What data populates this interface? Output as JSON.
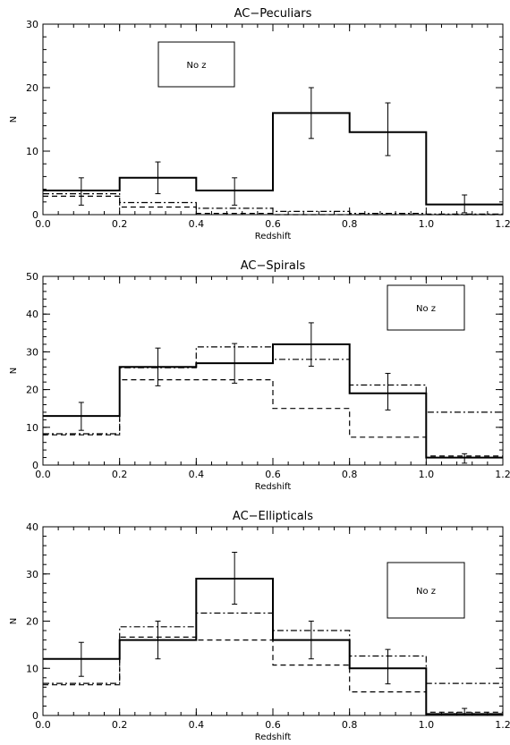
{
  "chart_data": [
    {
      "type": "line",
      "title": "AC−Peculiars",
      "xlabel": "Redshift",
      "ylabel": "N",
      "xlim": [
        0,
        1.2
      ],
      "ylim": [
        0,
        30
      ],
      "xticks": [
        "0.0",
        "0.2",
        "0.4",
        "0.6",
        "0.8",
        "1.0",
        "1.2"
      ],
      "yticks": [
        "0",
        "10",
        "20",
        "30"
      ],
      "box_label": "No z",
      "bin_edges": [
        0,
        0.2,
        0.4,
        0.6,
        0.8,
        1.0,
        1.2
      ],
      "series": [
        {
          "style": "solid",
          "values": [
            3.8,
            5.8,
            3.8,
            16,
            13,
            1.6
          ],
          "errors": [
            [
              1.5,
              5.8
            ],
            [
              3.3,
              8.3
            ],
            [
              1.5,
              5.8
            ],
            [
              12,
              20
            ],
            [
              9.3,
              17.6
            ],
            [
              0.3,
              3.1
            ]
          ]
        },
        {
          "style": "dashed",
          "values": [
            2.9,
            1.2,
            0.2,
            0.0,
            0.0,
            0.0
          ]
        },
        {
          "style": "dashdot",
          "values": [
            3.3,
            1.9,
            1.0,
            0.5,
            0.2,
            0.1
          ]
        }
      ]
    },
    {
      "type": "line",
      "title": "AC−Spirals",
      "xlabel": "Redshift",
      "ylabel": "N",
      "xlim": [
        0,
        1.2
      ],
      "ylim": [
        0,
        50
      ],
      "xticks": [
        "0.0",
        "0.2",
        "0.4",
        "0.6",
        "0.8",
        "1.0",
        "1.2"
      ],
      "yticks": [
        "0",
        "10",
        "20",
        "30",
        "40",
        "50"
      ],
      "box_label": "No z",
      "bin_edges": [
        0,
        0.2,
        0.4,
        0.6,
        0.8,
        1.0,
        1.2
      ],
      "series": [
        {
          "style": "solid",
          "values": [
            13,
            26,
            27,
            32,
            19,
            2
          ],
          "errors": [
            [
              9.2,
              16.6
            ],
            [
              21,
              31
            ],
            [
              21.7,
              32.2
            ],
            [
              26.2,
              37.7
            ],
            [
              14.6,
              24.3
            ],
            [
              0.5,
              3
            ]
          ]
        },
        {
          "style": "dashed",
          "values": [
            8,
            22.6,
            22.6,
            15,
            7.4,
            2.4
          ]
        },
        {
          "style": "dashdot",
          "values": [
            8.3,
            25.8,
            31.3,
            28,
            21.2,
            14
          ]
        }
      ]
    },
    {
      "type": "line",
      "title": "AC−Ellipticals",
      "xlabel": "Redshift",
      "ylabel": "N",
      "xlim": [
        0,
        1.2
      ],
      "ylim": [
        0,
        40
      ],
      "xticks": [
        "0.0",
        "0.2",
        "0.4",
        "0.6",
        "0.8",
        "1.0",
        "1.2"
      ],
      "yticks": [
        "0",
        "10",
        "20",
        "30",
        "40"
      ],
      "box_label": "No z",
      "bin_edges": [
        0,
        0.2,
        0.4,
        0.6,
        0.8,
        1.0,
        1.2
      ],
      "series": [
        {
          "style": "solid",
          "values": [
            12,
            16,
            29,
            16,
            10,
            0.3
          ],
          "errors": [
            [
              8.3,
              15.5
            ],
            [
              12,
              20
            ],
            [
              23.6,
              34.6
            ],
            [
              12,
              20
            ],
            [
              6.7,
              14
            ],
            [
              0,
              1.5
            ]
          ]
        },
        {
          "style": "dashed",
          "values": [
            6.5,
            16.6,
            16,
            10.7,
            5,
            0.7
          ]
        },
        {
          "style": "dashdot",
          "values": [
            6.8,
            18.8,
            21.7,
            18,
            12.6,
            6.8
          ]
        }
      ]
    }
  ]
}
